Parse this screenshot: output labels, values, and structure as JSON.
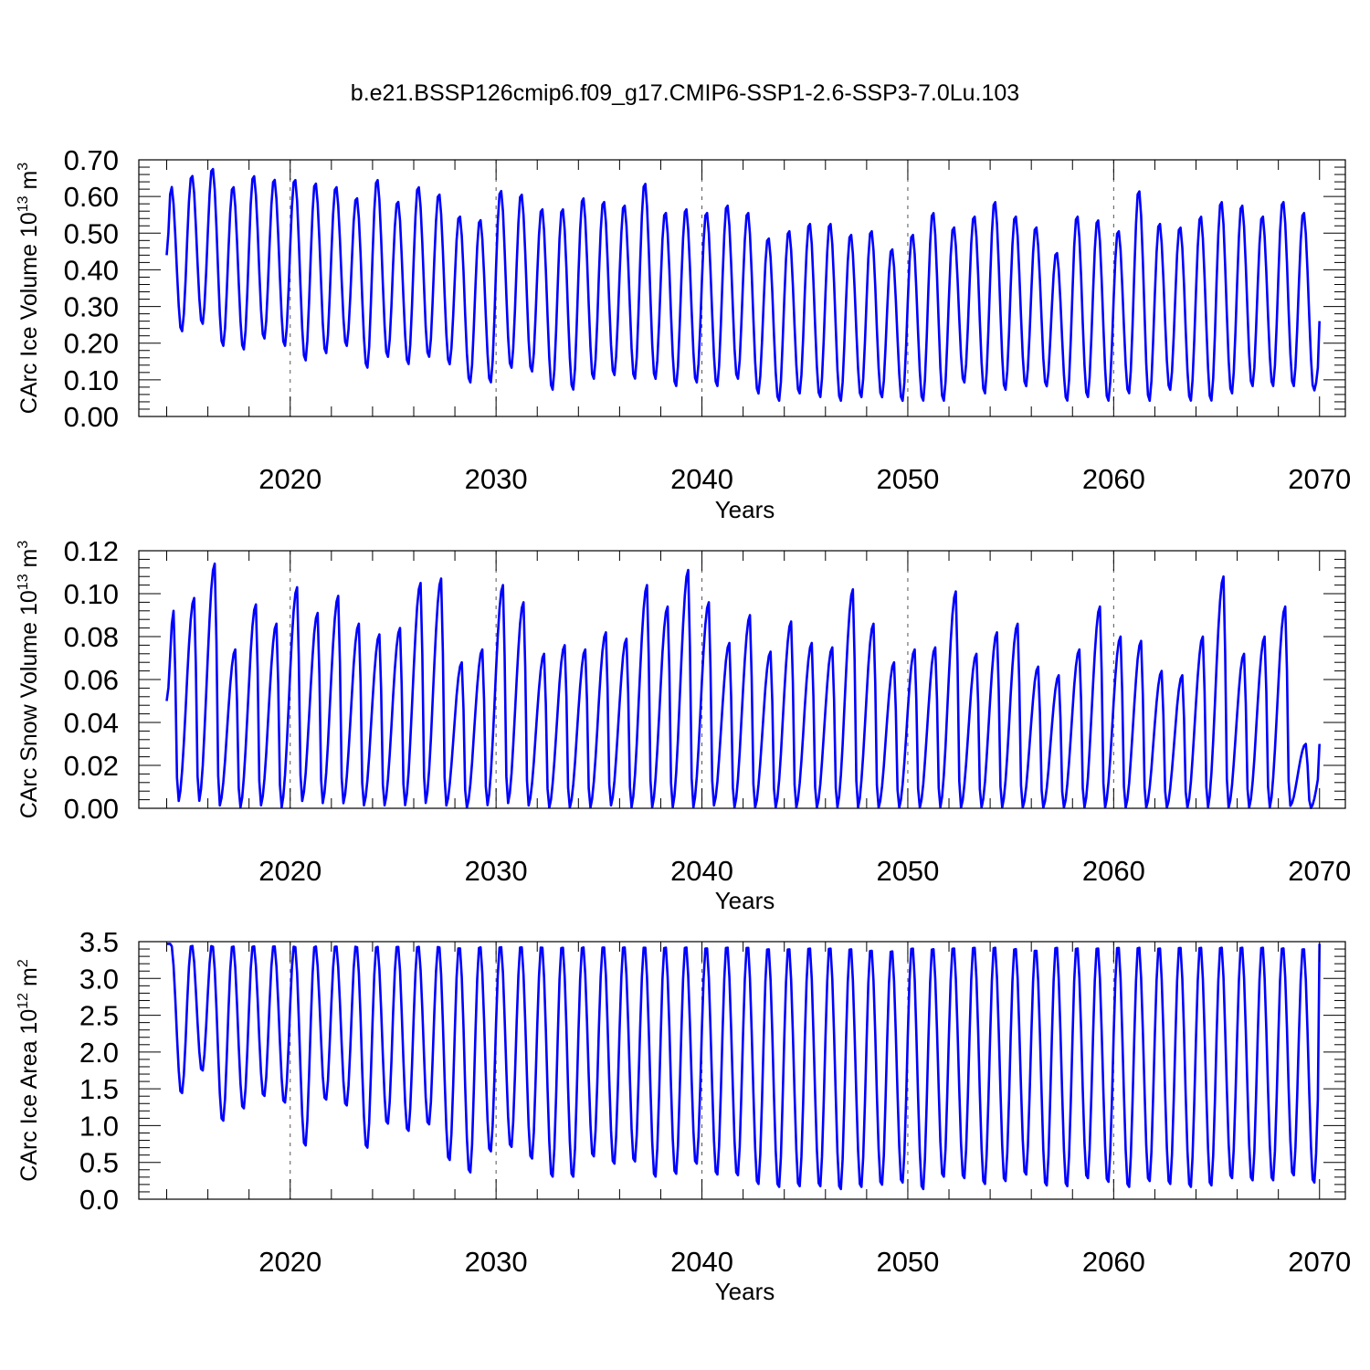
{
  "title": "b.e21.BSSP126cmip6.f09_g17.CMIP6-SSP1-2.6-SSP3-7.0Lu.103",
  "colors": {
    "line": "#0000ff",
    "axis": "#000000",
    "grid": "#555555"
  },
  "chart_data": [
    {
      "type": "line",
      "name": "ice-volume",
      "ylabel": {
        "base": "CArc Ice Volume 10",
        "exp": "13",
        "unit": " m",
        "unit_exp": "3"
      },
      "xlabel": "Years",
      "xlim": [
        2013.8,
        2070.1
      ],
      "ylim": [
        0.0,
        0.7
      ],
      "x_ticks": [
        2020,
        2030,
        2040,
        2050,
        2060,
        2070
      ],
      "x_tick_labels": [
        "2020",
        "2030",
        "2040",
        "2050",
        "2060",
        "2070"
      ],
      "y_ticks": [
        0.0,
        0.1,
        0.2,
        0.3,
        0.4,
        0.5,
        0.6,
        0.7
      ],
      "y_tick_labels": [
        "0.00",
        "0.10",
        "0.20",
        "0.30",
        "0.40",
        "0.50",
        "0.60",
        "0.70"
      ],
      "grid": "x-dashed",
      "series": [
        {
          "name": "CArc Ice Volume",
          "start_year": 2014,
          "steps_per_year": 12,
          "start_value": 0.44,
          "end_value": 0.26,
          "phase_max": 2.6,
          "phase_min": 8.7,
          "annual_max": [
            0.63,
            0.66,
            0.68,
            0.63,
            0.66,
            0.65,
            0.65,
            0.64,
            0.63,
            0.6,
            0.65,
            0.59,
            0.63,
            0.61,
            0.55,
            0.54,
            0.62,
            0.61,
            0.57,
            0.57,
            0.6,
            0.59,
            0.58,
            0.64,
            0.56,
            0.57,
            0.56,
            0.58,
            0.56,
            0.49,
            0.51,
            0.53,
            0.53,
            0.5,
            0.51,
            0.46,
            0.5,
            0.56,
            0.52,
            0.55,
            0.59,
            0.55,
            0.52,
            0.45,
            0.55,
            0.54,
            0.51,
            0.62,
            0.53,
            0.52,
            0.55,
            0.59,
            0.58,
            0.55,
            0.59,
            0.56
          ],
          "annual_min": [
            0.23,
            0.25,
            0.19,
            0.18,
            0.21,
            0.19,
            0.15,
            0.17,
            0.19,
            0.13,
            0.16,
            0.14,
            0.16,
            0.14,
            0.09,
            0.09,
            0.13,
            0.12,
            0.07,
            0.07,
            0.1,
            0.11,
            0.1,
            0.1,
            0.08,
            0.09,
            0.08,
            0.1,
            0.06,
            0.04,
            0.06,
            0.05,
            0.04,
            0.05,
            0.05,
            0.04,
            0.04,
            0.04,
            0.09,
            0.06,
            0.07,
            0.08,
            0.08,
            0.04,
            0.05,
            0.04,
            0.06,
            0.04,
            0.07,
            0.04,
            0.04,
            0.06,
            0.08,
            0.08,
            0.08,
            0.07
          ]
        }
      ]
    },
    {
      "type": "line",
      "name": "snow-volume",
      "ylabel": {
        "base": "CArc Snow Volume 10",
        "exp": "13",
        "unit": " m",
        "unit_exp": "3"
      },
      "xlabel": "Years",
      "xlim": [
        2013.8,
        2070.1
      ],
      "ylim": [
        0.0,
        0.12
      ],
      "x_ticks": [
        2020,
        2030,
        2040,
        2050,
        2060,
        2070
      ],
      "x_tick_labels": [
        "2020",
        "2030",
        "2040",
        "2050",
        "2060",
        "2070"
      ],
      "y_ticks": [
        0.0,
        0.02,
        0.04,
        0.06,
        0.08,
        0.1,
        0.12
      ],
      "y_tick_labels": [
        "0.00",
        "0.02",
        "0.04",
        "0.06",
        "0.08",
        "0.10",
        "0.12"
      ],
      "grid": "x-dashed",
      "series": [
        {
          "name": "CArc Snow Volume",
          "start_year": 2014,
          "steps_per_year": 12,
          "start_value": 0.05,
          "end_value": 0.03,
          "phase_max": 4.0,
          "phase_min": 6.6,
          "annual_max": [
            0.092,
            0.098,
            0.114,
            0.074,
            0.095,
            0.086,
            0.103,
            0.091,
            0.099,
            0.086,
            0.081,
            0.084,
            0.105,
            0.107,
            0.068,
            0.074,
            0.104,
            0.096,
            0.072,
            0.076,
            0.074,
            0.082,
            0.079,
            0.104,
            0.094,
            0.111,
            0.096,
            0.077,
            0.09,
            0.073,
            0.087,
            0.077,
            0.075,
            0.102,
            0.086,
            0.068,
            0.074,
            0.075,
            0.101,
            0.072,
            0.082,
            0.086,
            0.066,
            0.062,
            0.074,
            0.094,
            0.08,
            0.078,
            0.064,
            0.062,
            0.08,
            0.108,
            0.072,
            0.08,
            0.094,
            0.03
          ],
          "annual_min": [
            0.003,
            0.003,
            0.001,
            0.0,
            0.001,
            0.0,
            0.003,
            0.002,
            0.002,
            0.001,
            0.001,
            0.001,
            0.002,
            0.001,
            0.0,
            0.001,
            0.002,
            0.001,
            0.0,
            0.0,
            0.0,
            0.001,
            0.0,
            0.0,
            0.0,
            0.0,
            0.001,
            0.0,
            0.0,
            0.0,
            0.0,
            0.0,
            0.0,
            0.0,
            0.0,
            0.0,
            0.0,
            0.0,
            0.0,
            0.0,
            0.0,
            0.0,
            0.0,
            0.0,
            0.0,
            0.0,
            0.0,
            0.0,
            0.0,
            0.0,
            0.0,
            0.0,
            0.0,
            0.0,
            0.001,
            0.0
          ]
        }
      ]
    },
    {
      "type": "line",
      "name": "ice-area",
      "ylabel": {
        "base": "CArc Ice Area 10",
        "exp": "12",
        "unit": " m",
        "unit_exp": "2"
      },
      "xlabel": "Years",
      "xlim": [
        2013.8,
        2070.1
      ],
      "ylim": [
        0.0,
        3.5
      ],
      "x_ticks": [
        2020,
        2030,
        2040,
        2050,
        2060,
        2070
      ],
      "x_tick_labels": [
        "2020",
        "2030",
        "2040",
        "2050",
        "2060",
        "2070"
      ],
      "y_ticks": [
        0.0,
        0.5,
        1.0,
        1.5,
        2.0,
        2.5,
        3.0,
        3.5
      ],
      "y_tick_labels": [
        "0.0",
        "0.5",
        "1.0",
        "1.5",
        "2.0",
        "2.5",
        "3.0",
        "3.5"
      ],
      "grid": "x-dashed",
      "series": [
        {
          "name": "CArc Ice Area",
          "start_year": 2014,
          "steps_per_year": 12,
          "start_value": 3.47,
          "end_value": 3.47,
          "phase_max": 2.5,
          "phase_min": 8.6,
          "annual_max": [
            3.47,
            3.47,
            3.47,
            3.47,
            3.47,
            3.47,
            3.47,
            3.47,
            3.47,
            3.47,
            3.47,
            3.47,
            3.47,
            3.47,
            3.46,
            3.47,
            3.47,
            3.47,
            3.47,
            3.47,
            3.47,
            3.47,
            3.47,
            3.47,
            3.47,
            3.47,
            3.46,
            3.47,
            3.47,
            3.45,
            3.45,
            3.46,
            3.46,
            3.45,
            3.43,
            3.42,
            3.46,
            3.45,
            3.46,
            3.47,
            3.47,
            3.45,
            3.43,
            3.47,
            3.46,
            3.46,
            3.47,
            3.47,
            3.46,
            3.47,
            3.47,
            3.47,
            3.47,
            3.47,
            3.46,
            3.45
          ],
          "annual_min": [
            1.42,
            1.73,
            1.04,
            1.21,
            1.38,
            1.29,
            0.7,
            1.33,
            1.25,
            0.67,
            1.0,
            0.9,
            0.99,
            0.5,
            0.33,
            0.62,
            0.68,
            0.52,
            0.27,
            0.27,
            0.55,
            0.45,
            0.48,
            0.27,
            0.31,
            0.45,
            0.3,
            0.29,
            0.17,
            0.13,
            0.14,
            0.14,
            0.1,
            0.13,
            0.16,
            0.19,
            0.1,
            0.27,
            0.25,
            0.17,
            0.21,
            0.3,
            0.15,
            0.14,
            0.25,
            0.2,
            0.13,
            0.21,
            0.17,
            0.13,
            0.15,
            0.25,
            0.22,
            0.22,
            0.29,
            0.19
          ]
        }
      ]
    }
  ]
}
